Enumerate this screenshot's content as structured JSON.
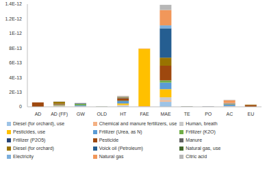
{
  "chart_data": {
    "type": "bar",
    "stacked": true,
    "grid": false,
    "legend": "bottom",
    "categories": [
      "AD",
      "AD (FF)",
      "GW",
      "OLD",
      "HT",
      "FAE",
      "MAE",
      "TE",
      "PO",
      "AC",
      "EU"
    ],
    "ylim": [
      0,
      1.4e-12
    ],
    "yticks": [
      0,
      {
        "value": 2e-13,
        "label": "2E-13"
      },
      {
        "value": 4e-13,
        "label": "4E-13"
      },
      {
        "value": 6e-13,
        "label": "6E-13"
      },
      {
        "value": 8e-13,
        "label": "8E-13"
      },
      {
        "value": 1e-12,
        "label": "1E-12"
      },
      {
        "value": 1.2e-12,
        "label": "1.2E-12"
      },
      {
        "value": 1.4e-12,
        "label": "1.4E-12"
      }
    ],
    "series": [
      {
        "name": "Diesel (for orchard), use",
        "color": "#9dc3e6",
        "values": [
          0,
          5e-15,
          0,
          0,
          1e-14,
          0,
          7e-14,
          2e-15,
          2e-15,
          5e-15,
          0
        ]
      },
      {
        "name": "Chemical and manure fertilizers, use",
        "color": "#f4b183",
        "values": [
          0,
          5e-15,
          0,
          0,
          5e-15,
          1e-14,
          2e-14,
          0,
          0,
          5e-15,
          0
        ]
      },
      {
        "name": "Human, breath",
        "color": "#c9c9c9",
        "values": [
          0,
          0,
          1e-14,
          0,
          1e-14,
          0,
          4e-14,
          0,
          0,
          0,
          0
        ]
      },
      {
        "name": "Pesticides, use",
        "color": "#ffc000",
        "values": [
          0,
          5e-15,
          0,
          0,
          2e-14,
          7.8e-13,
          1.1e-13,
          0,
          0,
          0,
          0
        ]
      },
      {
        "name": "Frtilizer (Urea, as N)",
        "color": "#5b9bd5",
        "values": [
          0,
          5e-15,
          1e-14,
          0,
          3e-14,
          0,
          9e-14,
          3e-15,
          3e-15,
          2e-14,
          0
        ]
      },
      {
        "name": "Frtilizer (K2O)",
        "color": "#70ad47",
        "values": [
          0,
          5e-15,
          2e-14,
          2e-15,
          5e-15,
          0,
          3e-14,
          2e-15,
          0,
          5e-15,
          0
        ]
      },
      {
        "name": "Frtilizer (P2O5)",
        "color": "#264478",
        "values": [
          0,
          0,
          5e-15,
          0,
          5e-15,
          0,
          0,
          0,
          0,
          0,
          0
        ]
      },
      {
        "name": "Pesticide",
        "color": "#9e480e",
        "values": [
          6e-14,
          1e-14,
          0,
          0,
          3e-14,
          0,
          2e-13,
          2e-15,
          2e-15,
          5e-15,
          2.5e-14
        ]
      },
      {
        "name": "Manure",
        "color": "#636363",
        "values": [
          0,
          5e-15,
          5e-15,
          2e-15,
          1e-14,
          0,
          0,
          0,
          0,
          5e-15,
          0
        ]
      },
      {
        "name": "Diesel (for orchard)",
        "color": "#997300",
        "values": [
          0,
          3e-14,
          0,
          0,
          1e-14,
          0,
          1.1e-13,
          0,
          0,
          0,
          5e-15
        ]
      },
      {
        "name": "Voick oil (Petroleum)",
        "color": "#255e91",
        "values": [
          0,
          0,
          0,
          0,
          0,
          0,
          4e-13,
          0,
          0,
          0,
          0
        ]
      },
      {
        "name": "Natural gas, use",
        "color": "#43682b",
        "values": [
          0,
          0,
          0,
          0,
          0,
          0,
          0,
          0,
          0,
          0,
          0
        ]
      },
      {
        "name": "Electricity",
        "color": "#7cafdd",
        "values": [
          0,
          0,
          0,
          0,
          5e-15,
          0,
          4e-14,
          0,
          0,
          5e-15,
          0
        ]
      },
      {
        "name": "Natural gas",
        "color": "#f1975a",
        "values": [
          0,
          0,
          0,
          0,
          5e-15,
          5e-15,
          2.1e-13,
          0,
          0,
          4e-14,
          0
        ]
      },
      {
        "name": "Citric acid",
        "color": "#b7b7b7",
        "values": [
          0,
          5e-15,
          0,
          0,
          5e-15,
          0,
          7e-14,
          0,
          0,
          5e-15,
          0
        ]
      }
    ]
  }
}
